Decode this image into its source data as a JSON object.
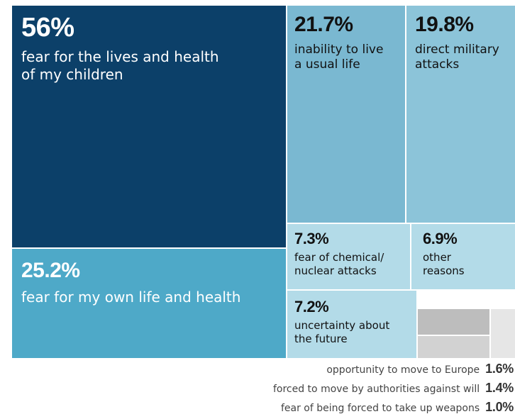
{
  "chart_data": {
    "type": "treemap",
    "title": "",
    "unit": "%",
    "items": [
      {
        "label": "fear for the lives and health of my children",
        "value": 56,
        "value_text": "56%",
        "lines": [
          "fear for the lives and health",
          "of my children"
        ],
        "color": "#0c4069",
        "text_color": "#ffffff"
      },
      {
        "label": "fear for my own life and health",
        "value": 25.2,
        "value_text": "25.2%",
        "lines": [
          "fear for my own life and health"
        ],
        "color": "#4ea9c8",
        "text_color": "#ffffff"
      },
      {
        "label": "inability to live a usual life",
        "value": 21.7,
        "value_text": "21.7%",
        "lines": [
          "inability to live",
          "a usual life"
        ],
        "color": "#7ab8d1",
        "text_color": "#111111"
      },
      {
        "label": "direct military attacks",
        "value": 19.8,
        "value_text": "19.8%",
        "lines": [
          "direct military",
          "attacks"
        ],
        "color": "#8cc4d9",
        "text_color": "#111111"
      },
      {
        "label": "fear of chemical/ nuclear attacks",
        "value": 7.3,
        "value_text": "7.3%",
        "lines": [
          "fear of chemical/",
          "nuclear attacks"
        ],
        "color": "#b3dbe8",
        "text_color": "#111111"
      },
      {
        "label": "other reasons",
        "value": 6.9,
        "value_text": "6.9%",
        "lines": [
          "other",
          "reasons"
        ],
        "color": "#b3dbe8",
        "text_color": "#111111"
      },
      {
        "label": "uncertainty about the future",
        "value": 7.2,
        "value_text": "7.2%",
        "lines": [
          "uncertainty about",
          "the future"
        ],
        "color": "#b3dbe8",
        "text_color": "#111111"
      }
    ],
    "small_items": [
      {
        "label": "opportunity to move to Europe",
        "value": 1.6,
        "value_text": "1.6%",
        "color": "#bdbdbd"
      },
      {
        "label": "forced to move by authorities against will",
        "value": 1.4,
        "value_text": "1.4%",
        "color": "#d2d2d2"
      },
      {
        "label": "fear of being forced to take up weapons",
        "value": 1.0,
        "value_text": "1.0%",
        "color": "#e6e6e6"
      }
    ]
  }
}
